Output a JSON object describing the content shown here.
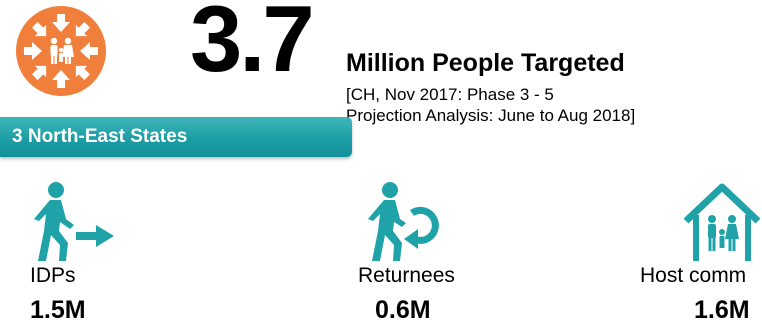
{
  "headline": {
    "number": "3.7",
    "title": "Million People Targeted",
    "note_line1": "[CH, Nov 2017: Phase 3 - 5",
    "note_line2": "Projection Analysis: June to Aug 2018]"
  },
  "region_badge": {
    "label": "3 North-East States"
  },
  "colors": {
    "orange": "#f07f3c",
    "teal": "#1fa3a8",
    "badge_teal": "#1c9ea5"
  },
  "groups": [
    {
      "label": "IDPs",
      "value": "1.5M",
      "icon": "person-walking-arrow-icon"
    },
    {
      "label": "Returnees",
      "value": "0.6M",
      "icon": "person-return-arrow-icon"
    },
    {
      "label": "Host comm",
      "value": "1.6M",
      "icon": "family-house-icon"
    }
  ]
}
